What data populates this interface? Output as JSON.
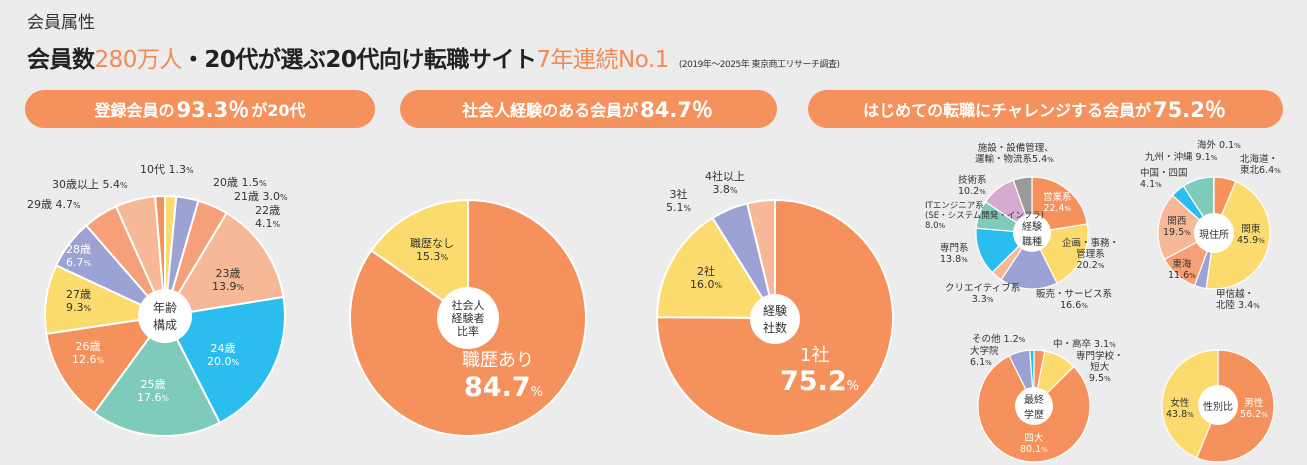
{
  "section_title": "会員属性",
  "headline": {
    "part1": "会員数",
    "highlight1": "280万人",
    "part2": "・20代が選ぶ20代向け転職サイト",
    "highlight2": "7年連続No.1",
    "note": "(2019年～2025年 東京商工リサーチ調査)"
  },
  "pills": [
    {
      "pre": "登録会員の",
      "big": "93.3％",
      "post": "が20代"
    },
    {
      "pre": "社会人経験のある会員が",
      "big": "84.7％",
      "post": ""
    },
    {
      "pre": "はじめての転職にチャレンジする会員が",
      "big": "75.2％",
      "post": ""
    }
  ],
  "colors": {
    "accent": "#f4915c",
    "orange": "#f4915c",
    "yellow": "#fcdb6e",
    "lavender": "#9ca3d4",
    "salmon": "#f5a078",
    "peach": "#f7b898",
    "cyan": "#2bbdee",
    "teal": "#7ecbbb",
    "pink": "#d6abd1",
    "gray": "#9a9a9a"
  },
  "chart_data": [
    {
      "type": "pie",
      "title": "年齢\n構成",
      "unit": "%",
      "start": "top",
      "direction": "clockwise",
      "slices": [
        {
          "label": "20歳",
          "value": 1.5,
          "color": "#fcdb6e"
        },
        {
          "label": "21歳",
          "value": 3.0,
          "color": "#9ca3d4"
        },
        {
          "label": "22歳",
          "value": 4.1,
          "color": "#f5a078"
        },
        {
          "label": "23歳",
          "value": 13.9,
          "color": "#f7b898"
        },
        {
          "label": "24歳",
          "value": 20.0,
          "color": "#2bbdee"
        },
        {
          "label": "25歳",
          "value": 17.6,
          "color": "#7ecbbb"
        },
        {
          "label": "26歳",
          "value": 12.6,
          "color": "#f4915c"
        },
        {
          "label": "27歳",
          "value": 9.3,
          "color": "#fcdb6e"
        },
        {
          "label": "28歳",
          "value": 6.7,
          "color": "#9ca3d4"
        },
        {
          "label": "29歳",
          "value": 4.7,
          "color": "#f5a078"
        },
        {
          "label": "30歳以上",
          "value": 5.4,
          "color": "#f7b898"
        },
        {
          "label": "10代",
          "value": 1.3,
          "color": "#f4915c"
        }
      ]
    },
    {
      "type": "pie",
      "title": "社会人\n経験者\n比率",
      "unit": "%",
      "start": "top",
      "direction": "clockwise",
      "slices": [
        {
          "label": "職歴あり",
          "value": 84.7,
          "color": "#f4915c"
        },
        {
          "label": "職歴なし",
          "value": 15.3,
          "color": "#fcdb6e"
        }
      ]
    },
    {
      "type": "pie",
      "title": "経験\n社数",
      "unit": "%",
      "start": "top",
      "direction": "clockwise",
      "slices": [
        {
          "label": "1社",
          "value": 75.2,
          "color": "#f4915c"
        },
        {
          "label": "2社",
          "value": 16.0,
          "color": "#fcdb6e"
        },
        {
          "label": "3社",
          "value": 5.1,
          "color": "#9ca3d4"
        },
        {
          "label": "4社以上",
          "value": 3.8,
          "color": "#f7b898"
        }
      ]
    },
    {
      "type": "pie",
      "title": "経験\n職種",
      "unit": "%",
      "start": "top",
      "direction": "clockwise",
      "slices": [
        {
          "label": "営業系",
          "value": 22.4,
          "color": "#f4915c"
        },
        {
          "label": "企画・事務・\n管理系",
          "value": 20.2,
          "color": "#fcdb6e"
        },
        {
          "label": "販売・サービス系",
          "value": 16.6,
          "color": "#9ca3d4"
        },
        {
          "label": "クリエイティブ系",
          "value": 3.3,
          "color": "#f7b898"
        },
        {
          "label": "専門系",
          "value": 13.8,
          "color": "#2bbdee"
        },
        {
          "label": "ITエンジニア系\n(SE・システム開発・インフラ)",
          "value": 8.0,
          "color": "#7ecbbb"
        },
        {
          "label": "技術系",
          "value": 10.2,
          "color": "#d6abd1"
        },
        {
          "label": "施設・設備管理、\n運輸・物流系",
          "value": 5.4,
          "color": "#9a9a9a"
        }
      ]
    },
    {
      "type": "pie",
      "title": "現住所",
      "unit": "%",
      "start": "top",
      "direction": "clockwise",
      "slices": [
        {
          "label": "北海道・\n東北",
          "value": 6.4,
          "color": "#f4915c"
        },
        {
          "label": "関東",
          "value": 45.9,
          "color": "#fcdb6e"
        },
        {
          "label": "甲信越・\n北陸",
          "value": 3.4,
          "color": "#9ca3d4"
        },
        {
          "label": "東海",
          "value": 11.6,
          "color": "#f5a078"
        },
        {
          "label": "関西",
          "value": 19.5,
          "color": "#f7b898"
        },
        {
          "label": "中国・四国",
          "value": 4.1,
          "color": "#2bbdee"
        },
        {
          "label": "九州・沖縄",
          "value": 9.1,
          "color": "#7ecbbb"
        },
        {
          "label": "海外",
          "value": 0.1,
          "color": "#9a9a9a"
        }
      ]
    },
    {
      "type": "pie",
      "title": "最終\n学歴",
      "unit": "%",
      "start": "top",
      "direction": "clockwise",
      "slices": [
        {
          "label": "中・高卒",
          "value": 3.1,
          "color": "#f4915c"
        },
        {
          "label": "専門学校・\n短大",
          "value": 9.5,
          "color": "#fcdb6e"
        },
        {
          "label": "四大",
          "value": 80.1,
          "color": "#f4915c"
        },
        {
          "label": "大学院",
          "value": 6.1,
          "color": "#9ca3d4"
        },
        {
          "label": "その他",
          "value": 1.2,
          "color": "#2bbdee"
        }
      ]
    },
    {
      "type": "pie",
      "title": "性別比",
      "unit": "%",
      "start": "top",
      "direction": "clockwise",
      "slices": [
        {
          "label": "男性",
          "value": 56.2,
          "color": "#f4915c"
        },
        {
          "label": "女性",
          "value": 43.8,
          "color": "#fcdb6e"
        }
      ]
    }
  ]
}
